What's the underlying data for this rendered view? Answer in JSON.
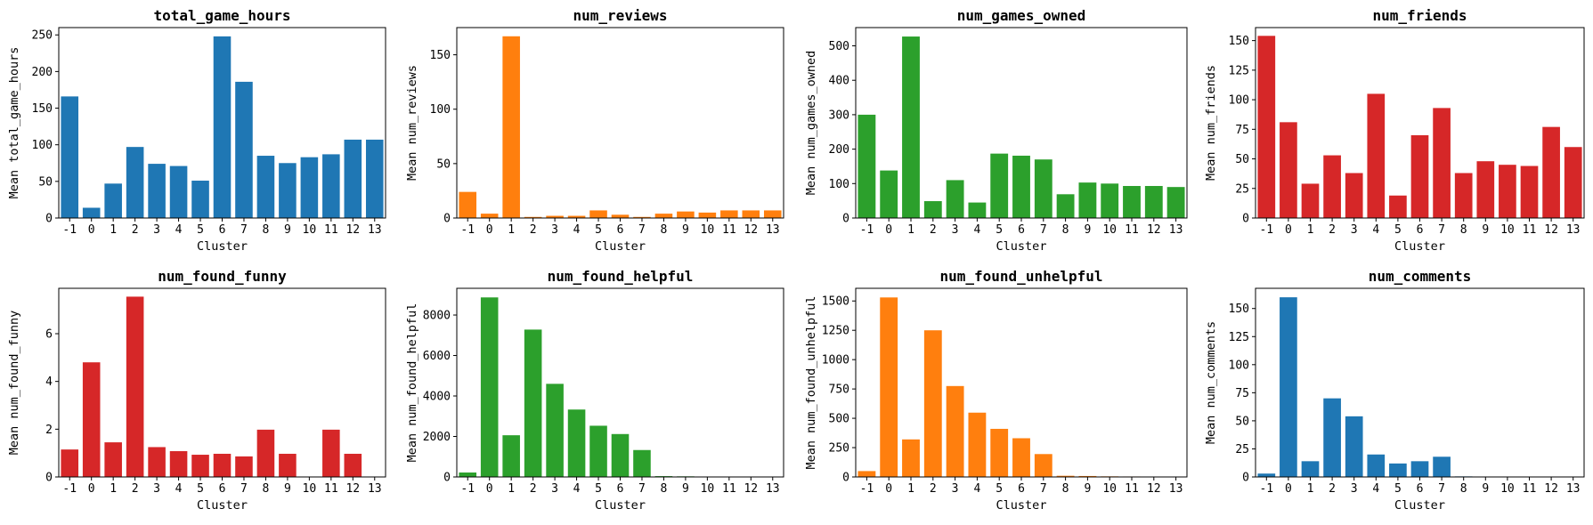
{
  "colors": {
    "blue": "#1f77b4",
    "orange": "#ff7f0e",
    "green": "#2ca02c",
    "red": "#d62728"
  },
  "chart_data": [
    {
      "type": "bar",
      "title": "total_game_hours",
      "xlabel": "Cluster",
      "ylabel": "Mean total_game_hours",
      "categories": [
        "-1",
        "0",
        "1",
        "2",
        "3",
        "4",
        "5",
        "6",
        "7",
        "8",
        "9",
        "10",
        "11",
        "12",
        "13"
      ],
      "values": [
        166,
        14,
        47,
        97,
        74,
        71,
        51,
        248,
        186,
        85,
        75,
        83,
        87,
        107,
        107
      ],
      "ylim": [
        0,
        260
      ],
      "yticks": [
        0,
        50,
        100,
        150,
        200,
        250
      ],
      "color": "blue",
      "grid": false
    },
    {
      "type": "bar",
      "title": "num_reviews",
      "xlabel": "Cluster",
      "ylabel": "Mean num_reviews",
      "categories": [
        "-1",
        "0",
        "1",
        "2",
        "3",
        "4",
        "5",
        "6",
        "7",
        "8",
        "9",
        "10",
        "11",
        "12",
        "13"
      ],
      "values": [
        24,
        4,
        167,
        1,
        2,
        2,
        7,
        3,
        1,
        4,
        6,
        5,
        7,
        7,
        7
      ],
      "ylim": [
        0,
        175
      ],
      "yticks": [
        0,
        50,
        100,
        150
      ],
      "color": "orange",
      "grid": false
    },
    {
      "type": "bar",
      "title": "num_games_owned",
      "xlabel": "Cluster",
      "ylabel": "Mean num_games_owned",
      "categories": [
        "-1",
        "0",
        "1",
        "2",
        "3",
        "4",
        "5",
        "6",
        "7",
        "8",
        "9",
        "10",
        "11",
        "12",
        "13"
      ],
      "values": [
        300,
        138,
        527,
        49,
        110,
        45,
        187,
        181,
        170,
        69,
        103,
        100,
        93,
        93,
        90
      ],
      "ylim": [
        0,
        553
      ],
      "yticks": [
        0,
        100,
        200,
        300,
        400,
        500
      ],
      "color": "green",
      "grid": false
    },
    {
      "type": "bar",
      "title": "num_friends",
      "xlabel": "Cluster",
      "ylabel": "Mean num_friends",
      "categories": [
        "-1",
        "0",
        "1",
        "2",
        "3",
        "4",
        "5",
        "6",
        "7",
        "8",
        "9",
        "10",
        "11",
        "12",
        "13"
      ],
      "values": [
        154,
        81,
        29,
        53,
        38,
        105,
        19,
        70,
        93,
        38,
        48,
        45,
        44,
        77,
        60
      ],
      "ylim": [
        0,
        161
      ],
      "yticks": [
        0,
        25,
        50,
        75,
        100,
        125,
        150
      ],
      "color": "red",
      "grid": false
    },
    {
      "type": "bar",
      "title": "num_found_funny",
      "xlabel": "Cluster",
      "ylabel": "Mean num_found_funny",
      "categories": [
        "-1",
        "0",
        "1",
        "2",
        "3",
        "4",
        "5",
        "6",
        "7",
        "8",
        "9",
        "10",
        "11",
        "12",
        "13"
      ],
      "values": [
        1.15,
        4.8,
        1.45,
        7.55,
        1.25,
        1.08,
        0.93,
        0.97,
        0.86,
        1.98,
        0.97,
        0,
        1.98,
        0.97,
        0
      ],
      "ylim": [
        0,
        7.9
      ],
      "yticks": [
        0,
        2,
        4,
        6
      ],
      "color": "red",
      "grid": false
    },
    {
      "type": "bar",
      "title": "num_found_helpful",
      "xlabel": "Cluster",
      "ylabel": "Mean num_found_helpful",
      "categories": [
        "-1",
        "0",
        "1",
        "2",
        "3",
        "4",
        "5",
        "6",
        "7",
        "8",
        "9",
        "10",
        "11",
        "12",
        "13"
      ],
      "values": [
        220,
        8870,
        2060,
        7280,
        4600,
        3330,
        2530,
        2120,
        1330,
        40,
        30,
        15,
        12,
        10,
        8
      ],
      "ylim": [
        0,
        9320
      ],
      "yticks": [
        0,
        2000,
        4000,
        6000,
        8000
      ],
      "color": "green",
      "grid": false
    },
    {
      "type": "bar",
      "title": "num_found_unhelpful",
      "xlabel": "Cluster",
      "ylabel": "Mean num_found_unhelpful",
      "categories": [
        "-1",
        "0",
        "1",
        "2",
        "3",
        "4",
        "5",
        "6",
        "7",
        "8",
        "9",
        "10",
        "11",
        "12",
        "13"
      ],
      "values": [
        50,
        1530,
        320,
        1250,
        775,
        548,
        410,
        330,
        195,
        10,
        8,
        5,
        4,
        3,
        2
      ],
      "ylim": [
        0,
        1608
      ],
      "yticks": [
        0,
        250,
        500,
        750,
        1000,
        1250,
        1500
      ],
      "color": "orange",
      "grid": false
    },
    {
      "type": "bar",
      "title": "num_comments",
      "xlabel": "Cluster",
      "ylabel": "Mean num_comments",
      "categories": [
        "-1",
        "0",
        "1",
        "2",
        "3",
        "4",
        "5",
        "6",
        "7",
        "8",
        "9",
        "10",
        "11",
        "12",
        "13"
      ],
      "values": [
        3,
        160,
        14,
        70,
        54,
        20,
        12,
        14,
        18,
        0.5,
        0.4,
        0.3,
        0.2,
        0.4,
        0.1
      ],
      "ylim": [
        0,
        168
      ],
      "yticks": [
        0,
        25,
        50,
        75,
        100,
        125,
        150
      ],
      "color": "blue",
      "grid": false
    }
  ]
}
